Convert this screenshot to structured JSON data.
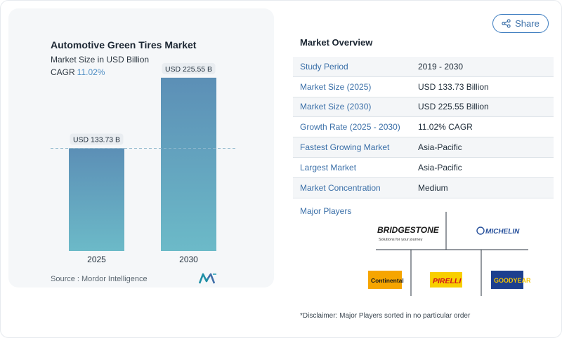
{
  "header": {
    "share_label": "Share"
  },
  "chart_data": {
    "type": "bar",
    "title": "Automotive Green Tires Market",
    "subtitle": "Market Size in USD Billion",
    "cagr_label": "CAGR",
    "cagr_value": "11.02%",
    "categories": [
      "2025",
      "2030"
    ],
    "values": [
      133.73,
      225.55
    ],
    "data_labels": [
      "USD 133.73 B",
      "USD 225.55 B"
    ],
    "ylim": [
      0,
      240
    ],
    "reference_line": 133.73,
    "colors": {
      "bar_top": "#5c8fb6",
      "bar_bottom": "#6cbac8",
      "reference_line": "#8fb7cc"
    },
    "source": "Source :  Mordor Intelligence"
  },
  "overview": {
    "title": "Market Overview",
    "rows": [
      {
        "label": "Study Period",
        "value": "2019 - 2030"
      },
      {
        "label": "Market Size (2025)",
        "value": "USD 133.73 Billion"
      },
      {
        "label": "Market Size (2030)",
        "value": "USD 225.55 Billion"
      },
      {
        "label": "Growth Rate (2025 - 2030)",
        "value": "11.02% CAGR"
      },
      {
        "label": "Fastest Growing Market",
        "value": "Asia-Pacific"
      },
      {
        "label": "Largest Market",
        "value": "Asia-Pacific"
      },
      {
        "label": "Market Concentration",
        "value": "Medium"
      }
    ]
  },
  "players": {
    "title": "Major Players",
    "bridgestone": {
      "name": "BRIDGESTONE",
      "tagline": "Solutions for your journey"
    },
    "michelin": "MICHELIN",
    "continental": "Continental",
    "pirelli": "PIRELLI",
    "goodyear": "GOODYEAR"
  },
  "disclaimer": "*Disclaimer: Major Players sorted in no particular order"
}
